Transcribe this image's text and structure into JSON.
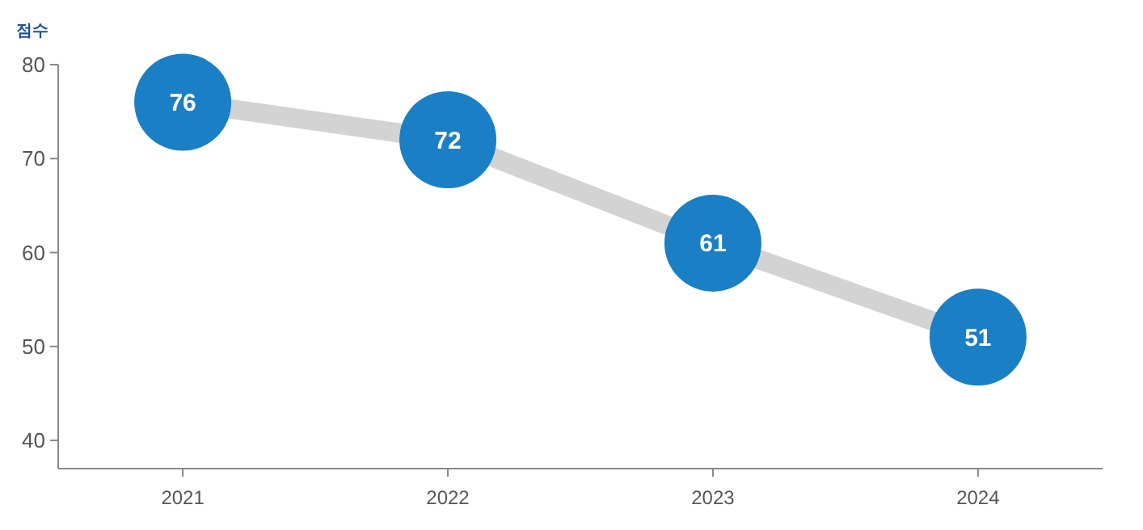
{
  "chart_data": {
    "type": "line",
    "ylabel": "점수",
    "categories": [
      "2021",
      "2022",
      "2023",
      "2024"
    ],
    "series": [
      {
        "color": "#d3d3d3",
        "values": [
          76,
          72,
          61,
          51
        ],
        "marker": "none",
        "value_labels": [
          null,
          null,
          null,
          null
        ]
      },
      {
        "type": "scatter",
        "color": "#1a7fc4",
        "values": [
          76,
          72,
          61,
          51
        ],
        "marker": "circle",
        "value_labels": [
          "76",
          "72",
          "61",
          "51"
        ]
      }
    ],
    "ylim": [
      37,
      80
    ],
    "yticks": [
      40,
      50,
      60,
      70,
      80
    ],
    "grid": false
  }
}
